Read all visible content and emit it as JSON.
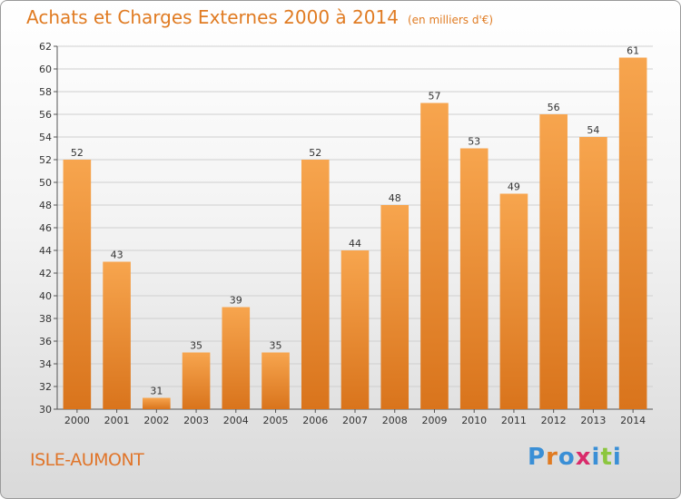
{
  "header": {
    "title": "Achats et Charges Externes 2000 à 2014",
    "subtitle": "(en milliers d'€)"
  },
  "footer": {
    "commune": "ISLE-AUMONT",
    "logo_letters": [
      "P",
      "r",
      "o",
      "x",
      "i",
      "t",
      "i"
    ],
    "logo_colors": [
      "#3a8fd6",
      "#e07b22",
      "#3a8fd6",
      "#d92b6b",
      "#3a8fd6",
      "#8cc63f",
      "#3a8fd6"
    ]
  },
  "colors": {
    "bar_light": "#f7a54e",
    "bar_dark": "#d9741c",
    "grid": "#cfcfcf",
    "accent": "#e07b22"
  },
  "chart_data": {
    "type": "bar",
    "title": "Achats et Charges Externes 2000 à 2014",
    "categories": [
      "2000",
      "2001",
      "2002",
      "2003",
      "2004",
      "2005",
      "2006",
      "2007",
      "2008",
      "2009",
      "2010",
      "2011",
      "2012",
      "2013",
      "2014"
    ],
    "values": [
      52,
      43,
      31,
      35,
      39,
      35,
      52,
      44,
      48,
      57,
      53,
      49,
      56,
      54,
      61
    ],
    "ylim": [
      30,
      62
    ],
    "yticks": [
      30,
      32,
      34,
      36,
      38,
      40,
      42,
      44,
      46,
      48,
      50,
      52,
      54,
      56,
      58,
      60,
      62
    ],
    "xlabel": "",
    "ylabel": "",
    "grid": true,
    "data_labels": true
  }
}
